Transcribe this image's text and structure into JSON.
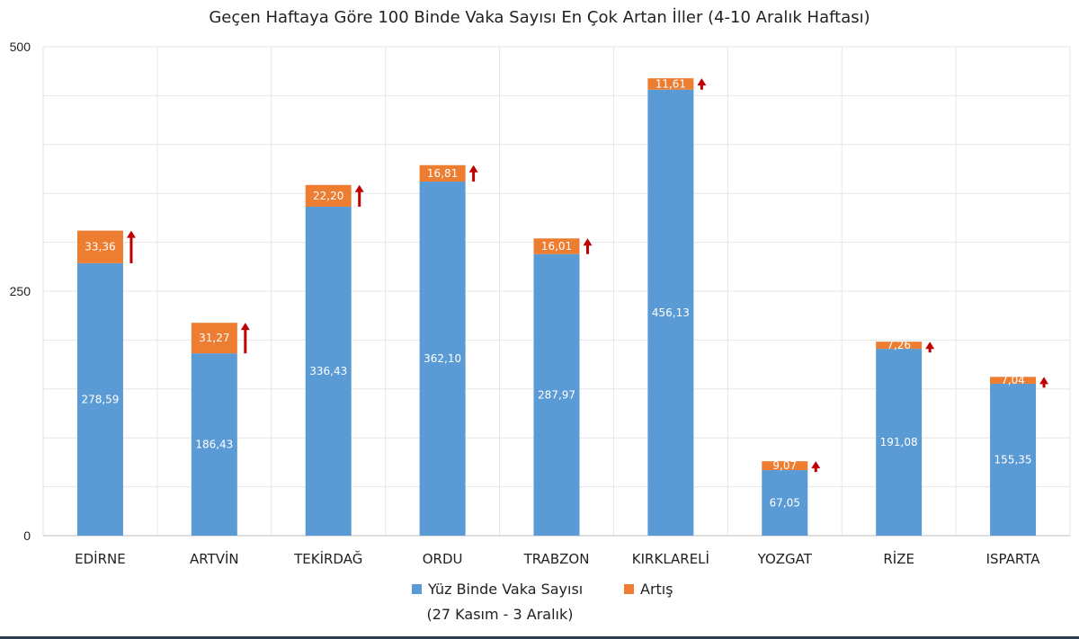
{
  "chart_data": {
    "type": "bar",
    "stacked": true,
    "title": "Geçen Haftaya Göre 100 Binde Vaka Sayısı En Çok Artan İller (4-10 Aralık Haftası)",
    "categories": [
      "EDİRNE",
      "ARTVİN",
      "TEKİRDAĞ",
      "ORDU",
      "TRABZON",
      "KIRKLARELİ",
      "YOZGAT",
      "RİZE",
      "ISPARTA"
    ],
    "series": [
      {
        "name": "Yüz Binde Vaka Sayısı",
        "color": "#5b9bd5",
        "values": [
          278.59,
          186.43,
          336.43,
          362.1,
          287.97,
          456.13,
          67.05,
          191.08,
          155.35
        ],
        "labels": [
          "278,59",
          "186,43",
          "336,43",
          "362,10",
          "287,97",
          "456,13",
          "67,05",
          "191,08",
          "155,35"
        ]
      },
      {
        "name": "Artış",
        "color": "#ed7d31",
        "values": [
          33.36,
          31.27,
          22.2,
          16.81,
          16.01,
          11.61,
          9.07,
          7.26,
          7.04
        ],
        "labels": [
          "33,36",
          "31,27",
          "22,20",
          "16,81",
          "16,01",
          "11,61",
          "9,07",
          "7,26",
          "7,04"
        ]
      }
    ],
    "legend_note": "(27 Kasım - 3 Aralık)",
    "ylim": [
      0,
      500
    ],
    "yticks": [
      0,
      250,
      500
    ],
    "ytick_labels": [
      "0",
      "250",
      "500"
    ],
    "grid": true,
    "legend": "bottom",
    "arrow_color": "#c00000",
    "grid_color": "#e6e6e6"
  }
}
